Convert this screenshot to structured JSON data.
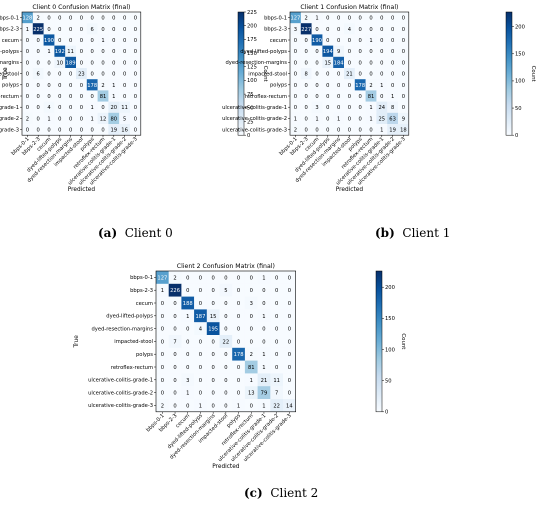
{
  "chart_data": [
    {
      "type": "heatmap",
      "title": "Client 0 Confusion Matrix (final)",
      "xlabel": "Predicted",
      "ylabel": "True",
      "colorbar_label": "Count",
      "colorbar_ticks": [
        0,
        25,
        50,
        75,
        100,
        125,
        150,
        175,
        200,
        225
      ],
      "vmax": 225,
      "labels": [
        "bbps-0-1",
        "bbps-2-3",
        "cecum",
        "dyed-lifted-polyps",
        "dyed-resection-margins",
        "impacted-stool",
        "polyps",
        "retroflex-rectum",
        "ulcerative-colitis-grade-1",
        "ulcerative-colitis-grade-2",
        "ulcerative-colitis-grade-3"
      ],
      "matrix": [
        [
          128,
          2,
          0,
          0,
          0,
          0,
          0,
          0,
          0,
          0,
          0
        ],
        [
          1,
          225,
          0,
          0,
          0,
          0,
          6,
          0,
          0,
          0,
          0
        ],
        [
          0,
          0,
          190,
          0,
          0,
          0,
          0,
          1,
          0,
          0,
          0
        ],
        [
          0,
          0,
          1,
          192,
          11,
          0,
          0,
          0,
          0,
          0,
          0
        ],
        [
          0,
          0,
          0,
          10,
          189,
          0,
          0,
          0,
          0,
          0,
          0
        ],
        [
          0,
          6,
          0,
          0,
          0,
          23,
          0,
          0,
          0,
          0,
          0
        ],
        [
          0,
          0,
          0,
          0,
          0,
          0,
          178,
          2,
          1,
          0,
          0
        ],
        [
          0,
          0,
          0,
          0,
          0,
          0,
          0,
          81,
          1,
          0,
          0
        ],
        [
          0,
          0,
          4,
          0,
          0,
          0,
          1,
          0,
          20,
          11,
          0
        ],
        [
          2,
          0,
          1,
          0,
          0,
          0,
          1,
          12,
          80,
          5,
          0
        ],
        [
          0,
          0,
          0,
          0,
          0,
          0,
          0,
          0,
          19,
          16,
          0
        ]
      ],
      "caption_letter": "(a)",
      "caption_text": "Client 0"
    },
    {
      "type": "heatmap",
      "title": "Client 1 Confusion Matrix (final)",
      "xlabel": "Predicted",
      "ylabel": "True",
      "colorbar_label": "Count",
      "colorbar_ticks": [
        0,
        50,
        100,
        150,
        200
      ],
      "vmax": 227,
      "labels": [
        "bbps-0-1",
        "bbps-2-3",
        "cecum",
        "dyed-lifted-polyps",
        "dyed-resection-margins",
        "impacted-stool",
        "polyps",
        "retroflex-rectum",
        "ulcerative-colitis-grade-1",
        "ulcerative-colitis-grade-2",
        "ulcerative-colitis-grade-3"
      ],
      "matrix": [
        [
          127,
          2,
          1,
          0,
          0,
          0,
          0,
          0,
          0,
          0,
          0
        ],
        [
          3,
          227,
          0,
          0,
          0,
          4,
          0,
          0,
          0,
          0,
          0
        ],
        [
          0,
          0,
          190,
          0,
          0,
          0,
          0,
          1,
          0,
          0,
          0
        ],
        [
          0,
          0,
          0,
          194,
          9,
          0,
          0,
          0,
          0,
          0,
          0
        ],
        [
          0,
          0,
          0,
          15,
          184,
          0,
          0,
          0,
          0,
          0,
          0
        ],
        [
          0,
          8,
          0,
          0,
          0,
          21,
          0,
          0,
          0,
          0,
          0
        ],
        [
          0,
          0,
          0,
          0,
          0,
          0,
          178,
          2,
          1,
          0,
          0
        ],
        [
          0,
          0,
          0,
          0,
          0,
          0,
          0,
          81,
          0,
          1,
          0
        ],
        [
          0,
          0,
          3,
          0,
          0,
          0,
          0,
          1,
          24,
          8,
          0
        ],
        [
          1,
          0,
          1,
          0,
          1,
          0,
          0,
          1,
          25,
          63,
          9
        ],
        [
          2,
          0,
          0,
          0,
          0,
          0,
          0,
          0,
          1,
          19,
          18
        ]
      ],
      "caption_letter": "(b)",
      "caption_text": "Client 1"
    },
    {
      "type": "heatmap",
      "title": "Client 2 Confusion Matrix (final)",
      "xlabel": "Predicted",
      "ylabel": "True",
      "colorbar_label": "Count",
      "colorbar_ticks": [
        0,
        50,
        100,
        150,
        200
      ],
      "vmax": 226,
      "labels": [
        "bbps-0-1",
        "bbps-2-3",
        "cecum",
        "dyed-lifted-polyps",
        "dyed-resection-margins",
        "impacted-stool",
        "polyps",
        "retroflex-rectum",
        "ulcerative-colitis-grade-1",
        "ulcerative-colitis-grade-2",
        "ulcerative-colitis-grade-3"
      ],
      "matrix": [
        [
          127,
          2,
          0,
          0,
          0,
          0,
          0,
          0,
          1,
          0,
          0
        ],
        [
          1,
          226,
          0,
          0,
          0,
          5,
          0,
          0,
          0,
          0,
          0
        ],
        [
          0,
          0,
          188,
          0,
          0,
          0,
          0,
          3,
          0,
          0,
          0
        ],
        [
          0,
          0,
          1,
          187,
          15,
          0,
          0,
          0,
          1,
          0,
          0
        ],
        [
          0,
          0,
          0,
          4,
          195,
          0,
          0,
          0,
          0,
          0,
          0
        ],
        [
          0,
          7,
          0,
          0,
          0,
          22,
          0,
          0,
          0,
          0,
          0
        ],
        [
          0,
          0,
          0,
          0,
          0,
          0,
          178,
          2,
          1,
          0,
          0
        ],
        [
          0,
          0,
          0,
          0,
          0,
          0,
          0,
          81,
          1,
          0,
          0
        ],
        [
          0,
          0,
          3,
          0,
          0,
          0,
          0,
          1,
          21,
          11,
          0
        ],
        [
          0,
          0,
          1,
          0,
          0,
          0,
          0,
          13,
          79,
          7,
          0
        ],
        [
          2,
          0,
          0,
          1,
          0,
          0,
          1,
          0,
          1,
          22,
          14
        ]
      ],
      "caption_letter": "(c)",
      "caption_text": "Client 2"
    }
  ]
}
